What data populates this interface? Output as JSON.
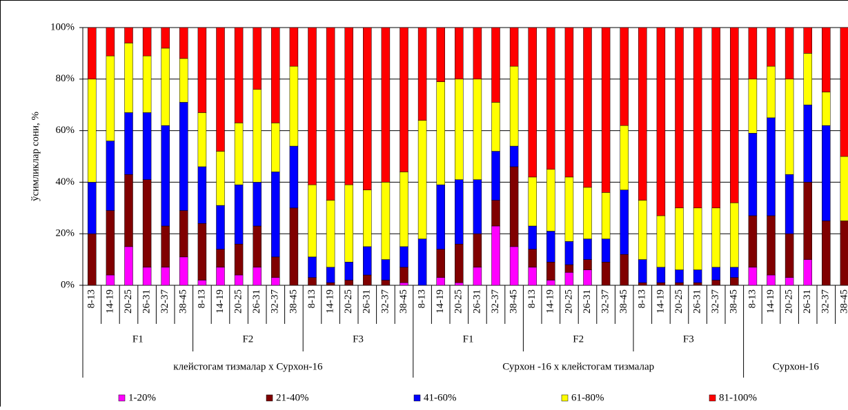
{
  "chart_data": {
    "type": "stacked_bar",
    "y_label": "ўсимликлар сони, %",
    "ylim": [
      0,
      100
    ],
    "yticks": [
      {
        "value": 0,
        "label": "0%"
      },
      {
        "value": 20,
        "label": "20%"
      },
      {
        "value": 40,
        "label": "40%"
      },
      {
        "value": 60,
        "label": "60%"
      },
      {
        "value": 80,
        "label": "80%"
      },
      {
        "value": 100,
        "label": "100%"
      }
    ],
    "grid": true,
    "categories": [
      "8-13",
      "14-19",
      "20-25",
      "26-31",
      "32-37",
      "38-45",
      "8-13",
      "14-19",
      "20-25",
      "26-31",
      "32-37",
      "38-45",
      "8-13",
      "14-19",
      "20-25",
      "26-31",
      "32-37",
      "38-45",
      "8-13",
      "14-19",
      "20-25",
      "26-31",
      "32-37",
      "38-45",
      "8-13",
      "14-19",
      "20-25",
      "26-31",
      "32-37",
      "38-45",
      "8-13",
      "14-19",
      "20-25",
      "26-31",
      "32-37",
      "38-45",
      "8-13",
      "14-19",
      "20-25",
      "26-31",
      "32-37",
      "38-45"
    ],
    "groups": [
      {
        "name": "клейстогам тизмалар x Сурхон-16",
        "subgroups": [
          "F1",
          "F2",
          "F3"
        ]
      },
      {
        "name": "Сурхон -16 x клейстогам тизмалар",
        "subgroups": [
          "F1",
          "F2",
          "F3"
        ]
      },
      {
        "name": "Сурхон-16",
        "subgroups": [
          null
        ]
      }
    ],
    "series": [
      {
        "name": "1-20%",
        "color": "#ff00ff",
        "values": [
          0,
          4,
          15,
          7,
          7,
          11,
          2,
          7,
          4,
          7,
          3,
          0,
          0,
          0,
          0,
          0,
          0,
          1,
          0,
          3,
          1,
          7,
          23,
          15,
          7,
          2,
          5,
          6,
          0,
          0,
          0,
          0,
          0,
          0,
          0,
          0,
          7,
          4,
          3,
          10,
          0,
          0
        ]
      },
      {
        "name": "21-40%",
        "color": "#800000",
        "values": [
          20,
          25,
          28,
          34,
          16,
          18,
          22,
          7,
          12,
          16,
          8,
          30,
          3,
          1,
          2,
          4,
          2,
          6,
          0,
          11,
          15,
          13,
          10,
          31,
          7,
          7,
          3,
          4,
          9,
          12,
          1,
          1,
          1,
          1,
          2,
          3,
          20,
          23,
          17,
          30,
          25,
          25
        ]
      },
      {
        "name": "41-60%",
        "color": "#0000ff",
        "values": [
          20,
          27,
          24,
          26,
          39,
          42,
          22,
          17,
          23,
          17,
          33,
          24,
          8,
          6,
          7,
          11,
          8,
          8,
          18,
          25,
          25,
          21,
          19,
          8,
          9,
          12,
          9,
          8,
          9,
          25,
          9,
          6,
          5,
          5,
          5,
          4,
          32,
          38,
          23,
          30,
          37,
          0
        ]
      },
      {
        "name": "61-80%",
        "color": "#ffff00",
        "values": [
          40,
          33,
          27,
          22,
          30,
          17,
          21,
          21,
          24,
          36,
          19,
          31,
          28,
          26,
          30,
          22,
          30,
          29,
          46,
          40,
          39,
          39,
          19,
          31,
          19,
          24,
          25,
          20,
          18,
          25,
          23,
          20,
          24,
          24,
          23,
          25,
          21,
          20,
          37,
          20,
          13,
          25
        ]
      },
      {
        "name": "81-100%",
        "color": "#ff0000",
        "values": [
          20,
          11,
          6,
          11,
          8,
          12,
          33,
          48,
          37,
          24,
          37,
          15,
          61,
          67,
          61,
          63,
          60,
          56,
          36,
          21,
          20,
          20,
          29,
          15,
          58,
          55,
          58,
          62,
          64,
          38,
          67,
          73,
          70,
          70,
          70,
          68,
          20,
          15,
          20,
          10,
          25,
          50
        ]
      }
    ]
  }
}
